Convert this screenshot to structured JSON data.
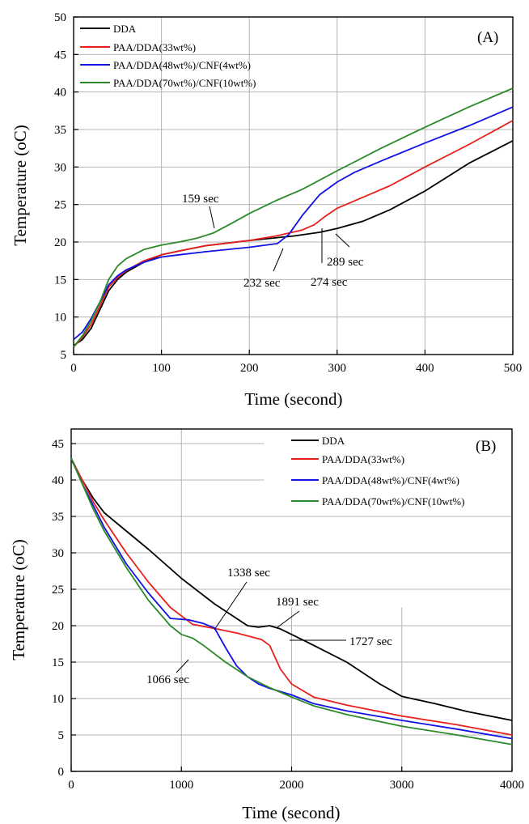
{
  "chart_data": [
    {
      "type": "line",
      "panel_label": "(A)",
      "xlabel": "Time (second)",
      "ylabel": "Temperature (oC)",
      "xlim": [
        0,
        500
      ],
      "ylim": [
        5,
        50
      ],
      "xticks": [
        "0",
        "100",
        "200",
        "300",
        "400",
        "500"
      ],
      "yticks": [
        "5",
        "10",
        "15",
        "20",
        "25",
        "30",
        "35",
        "40",
        "45",
        "50"
      ],
      "grid": true,
      "legend_position": "top-left",
      "series": [
        {
          "name": "DDA",
          "color": "#000000",
          "x": [
            0,
            10,
            20,
            30,
            40,
            50,
            60,
            80,
            100,
            120,
            150,
            200,
            250,
            280,
            300,
            330,
            360,
            400,
            450,
            500
          ],
          "y": [
            6.2,
            7,
            8.5,
            11,
            13.5,
            15,
            16,
            17.3,
            18.3,
            18.8,
            19.5,
            20.2,
            20.8,
            21.3,
            21.8,
            22.8,
            24.3,
            26.8,
            30.5,
            33.5
          ]
        },
        {
          "name": "PAA/DDA(33wt%)",
          "color": "#e8201c",
          "x": [
            0,
            10,
            20,
            30,
            40,
            50,
            60,
            80,
            100,
            120,
            150,
            200,
            230,
            260,
            274,
            285,
            300,
            330,
            360,
            400,
            450,
            500
          ],
          "y": [
            6,
            7.3,
            9,
            11.5,
            14,
            15.3,
            16.2,
            17.5,
            18.3,
            18.8,
            19.5,
            20.2,
            20.8,
            21.6,
            22.3,
            23.3,
            24.5,
            26,
            27.5,
            30,
            33,
            36.2
          ]
        },
        {
          "name": "PAA/DDA(48wt%)/CNF(4wt%)",
          "color": "#1212e6",
          "x": [
            0,
            10,
            20,
            30,
            40,
            50,
            60,
            80,
            100,
            120,
            150,
            200,
            232,
            245,
            260,
            280,
            300,
            320,
            350,
            400,
            450,
            500
          ],
          "y": [
            7,
            8,
            9.8,
            12,
            14.3,
            15.5,
            16.3,
            17.3,
            18,
            18.3,
            18.7,
            19.3,
            19.8,
            21,
            23.5,
            26.3,
            28,
            29.3,
            30.8,
            33.2,
            35.5,
            38
          ]
        },
        {
          "name": "PAA/DDA(70wt%)/CNF(10wt%)",
          "color": "#2a8a2a",
          "x": [
            0,
            10,
            20,
            30,
            40,
            50,
            60,
            80,
            100,
            120,
            140,
            159,
            180,
            200,
            230,
            260,
            300,
            350,
            400,
            450,
            500
          ],
          "y": [
            6,
            7.5,
            9.5,
            12,
            15,
            16.8,
            17.8,
            19,
            19.6,
            20,
            20.5,
            21.2,
            22.5,
            23.8,
            25.5,
            27,
            29.5,
            32.5,
            35.3,
            38,
            40.5
          ]
        }
      ],
      "annotations": [
        "159 sec",
        "232 sec",
        "274 sec",
        "289 sec"
      ]
    },
    {
      "type": "line",
      "panel_label": "(B)",
      "xlabel": "Time (second)",
      "ylabel": "Temperature (oC)",
      "xlim": [
        0,
        4000
      ],
      "ylim": [
        0,
        47
      ],
      "xticks": [
        "0",
        "1000",
        "2000",
        "3000",
        "4000"
      ],
      "yticks": [
        "0",
        "5",
        "10",
        "15",
        "20",
        "25",
        "30",
        "35",
        "40",
        "45"
      ],
      "grid": true,
      "legend_position": "top-right",
      "series": [
        {
          "name": "DDA",
          "color": "#000000",
          "x": [
            0,
            100,
            200,
            300,
            500,
            700,
            1000,
            1300,
            1500,
            1600,
            1700,
            1800,
            1891,
            2000,
            2200,
            2500,
            2800,
            3000,
            3300,
            3600,
            4000
          ],
          "y": [
            42.8,
            40,
            37.5,
            35.5,
            33,
            30.5,
            26.5,
            23,
            21,
            20,
            19.8,
            20,
            19.6,
            18.8,
            17.3,
            15,
            12,
            10.3,
            9.3,
            8.2,
            7
          ]
        },
        {
          "name": "PAA/DDA(33wt%)",
          "color": "#e8201c",
          "x": [
            0,
            100,
            200,
            300,
            500,
            700,
            900,
            1100,
            1338,
            1500,
            1727,
            1800,
            1900,
            2000,
            2200,
            2500,
            3000,
            3500,
            4000
          ],
          "y": [
            43,
            40,
            37,
            34.5,
            30,
            26,
            22.5,
            20.2,
            19.5,
            19,
            18.1,
            17.3,
            14,
            12,
            10.2,
            9.1,
            7.6,
            6.4,
            5
          ]
        },
        {
          "name": "PAA/DDA(48wt%)/CNF(4wt%)",
          "color": "#1212e6",
          "x": [
            0,
            100,
            200,
            300,
            500,
            700,
            900,
            1066,
            1200,
            1300,
            1400,
            1500,
            1600,
            1700,
            1800,
            2000,
            2200,
            2500,
            3000,
            3500,
            4000
          ],
          "y": [
            43,
            39.5,
            36.5,
            33.5,
            28.5,
            24.5,
            21,
            20.8,
            20.3,
            19.7,
            17,
            14.5,
            13,
            12,
            11.4,
            10.5,
            9.3,
            8.3,
            7,
            5.8,
            4.5
          ]
        },
        {
          "name": "PAA/DDA(70wt%)/CNF(10wt%)",
          "color": "#2a8a2a",
          "x": [
            0,
            100,
            200,
            300,
            500,
            700,
            900,
            1000,
            1100,
            1200,
            1400,
            1600,
            1800,
            2000,
            2200,
            2500,
            3000,
            3500,
            4000
          ],
          "y": [
            43,
            39.5,
            36,
            33,
            28,
            23.5,
            20,
            18.8,
            18.3,
            17.3,
            15,
            13,
            11.5,
            10.2,
            9,
            7.8,
            6.2,
            5,
            3.7
          ]
        }
      ],
      "annotations": [
        "1066 sec",
        "1338 sec",
        "1891 sec",
        "1727 sec"
      ]
    }
  ]
}
